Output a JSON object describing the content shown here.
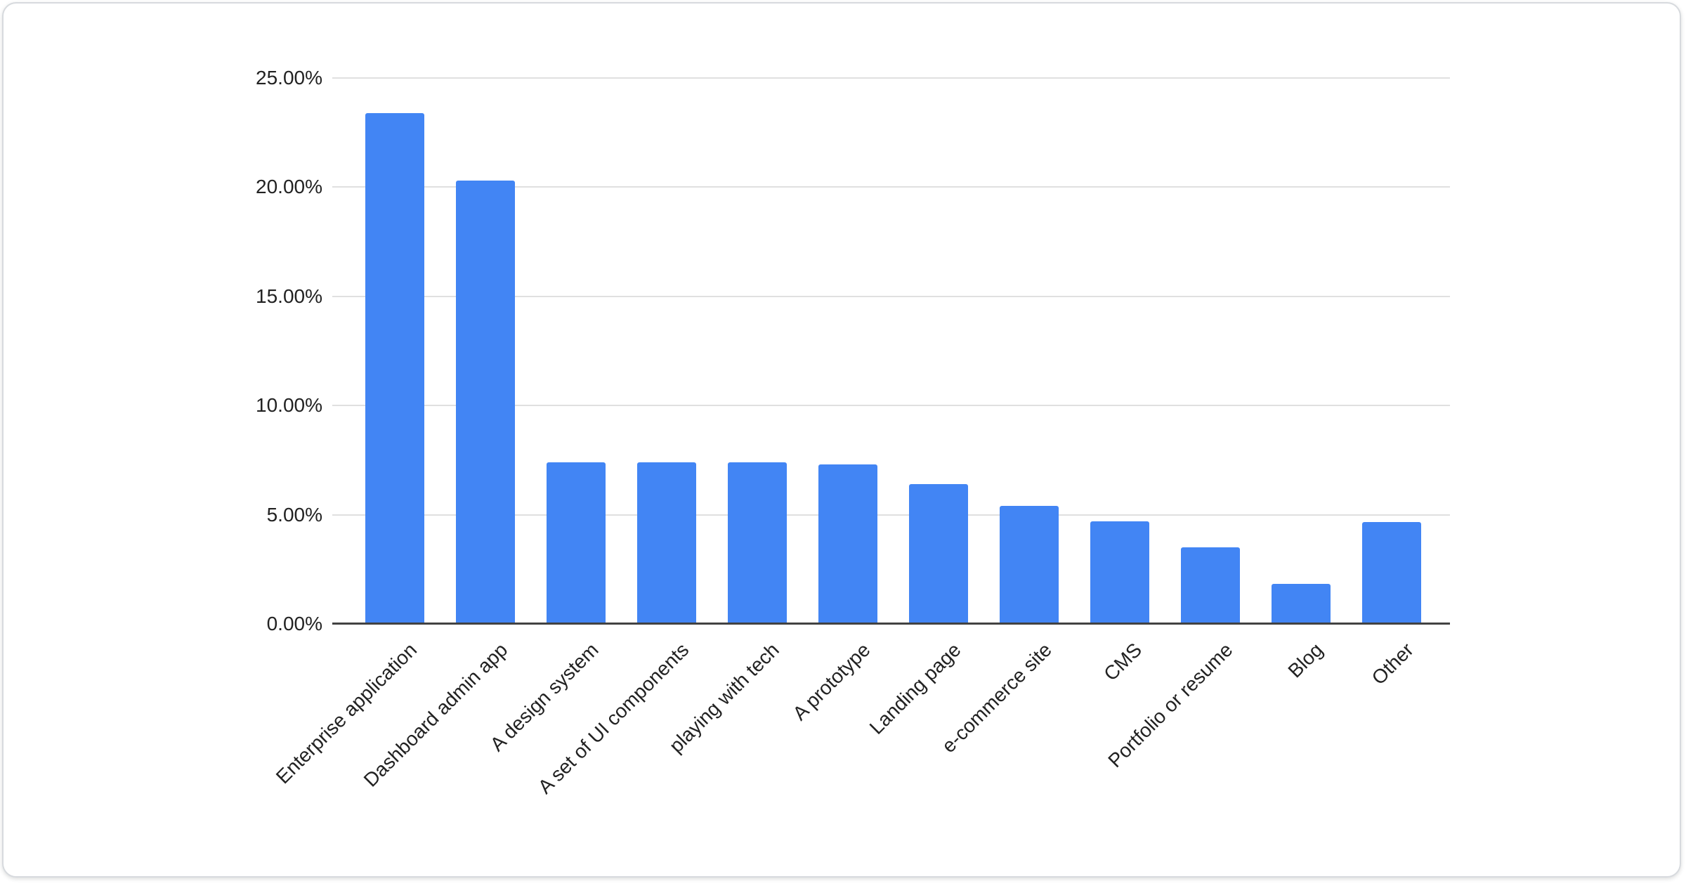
{
  "card": {
    "background": "#ffffff",
    "border_color": "#d7dade"
  },
  "chart_data": {
    "type": "bar",
    "title": "",
    "xlabel": "",
    "ylabel": "",
    "categories": [
      "Enterprise application",
      "Dashboard admin app",
      "A design system",
      "A set of UI components",
      "playing with tech",
      "A prototype",
      "Landing page",
      "e-commerce site",
      "CMS",
      "Portfolio or resume",
      "Blog",
      "Other"
    ],
    "values": [
      23.4,
      20.3,
      7.4,
      7.4,
      7.4,
      7.3,
      6.4,
      5.4,
      4.7,
      3.5,
      1.85,
      4.65
    ],
    "ylim": [
      0,
      25
    ],
    "ytick_step": 5,
    "ytick_labels": [
      "0.00%",
      "5.00%",
      "10.00%",
      "15.00%",
      "20.00%",
      "25.00%"
    ],
    "grid": true,
    "legend": "none",
    "bar_color": "#4285f4",
    "gridline_color": "#e0e0e0",
    "axis_line_color": "#424242",
    "label_color": "#222222"
  }
}
